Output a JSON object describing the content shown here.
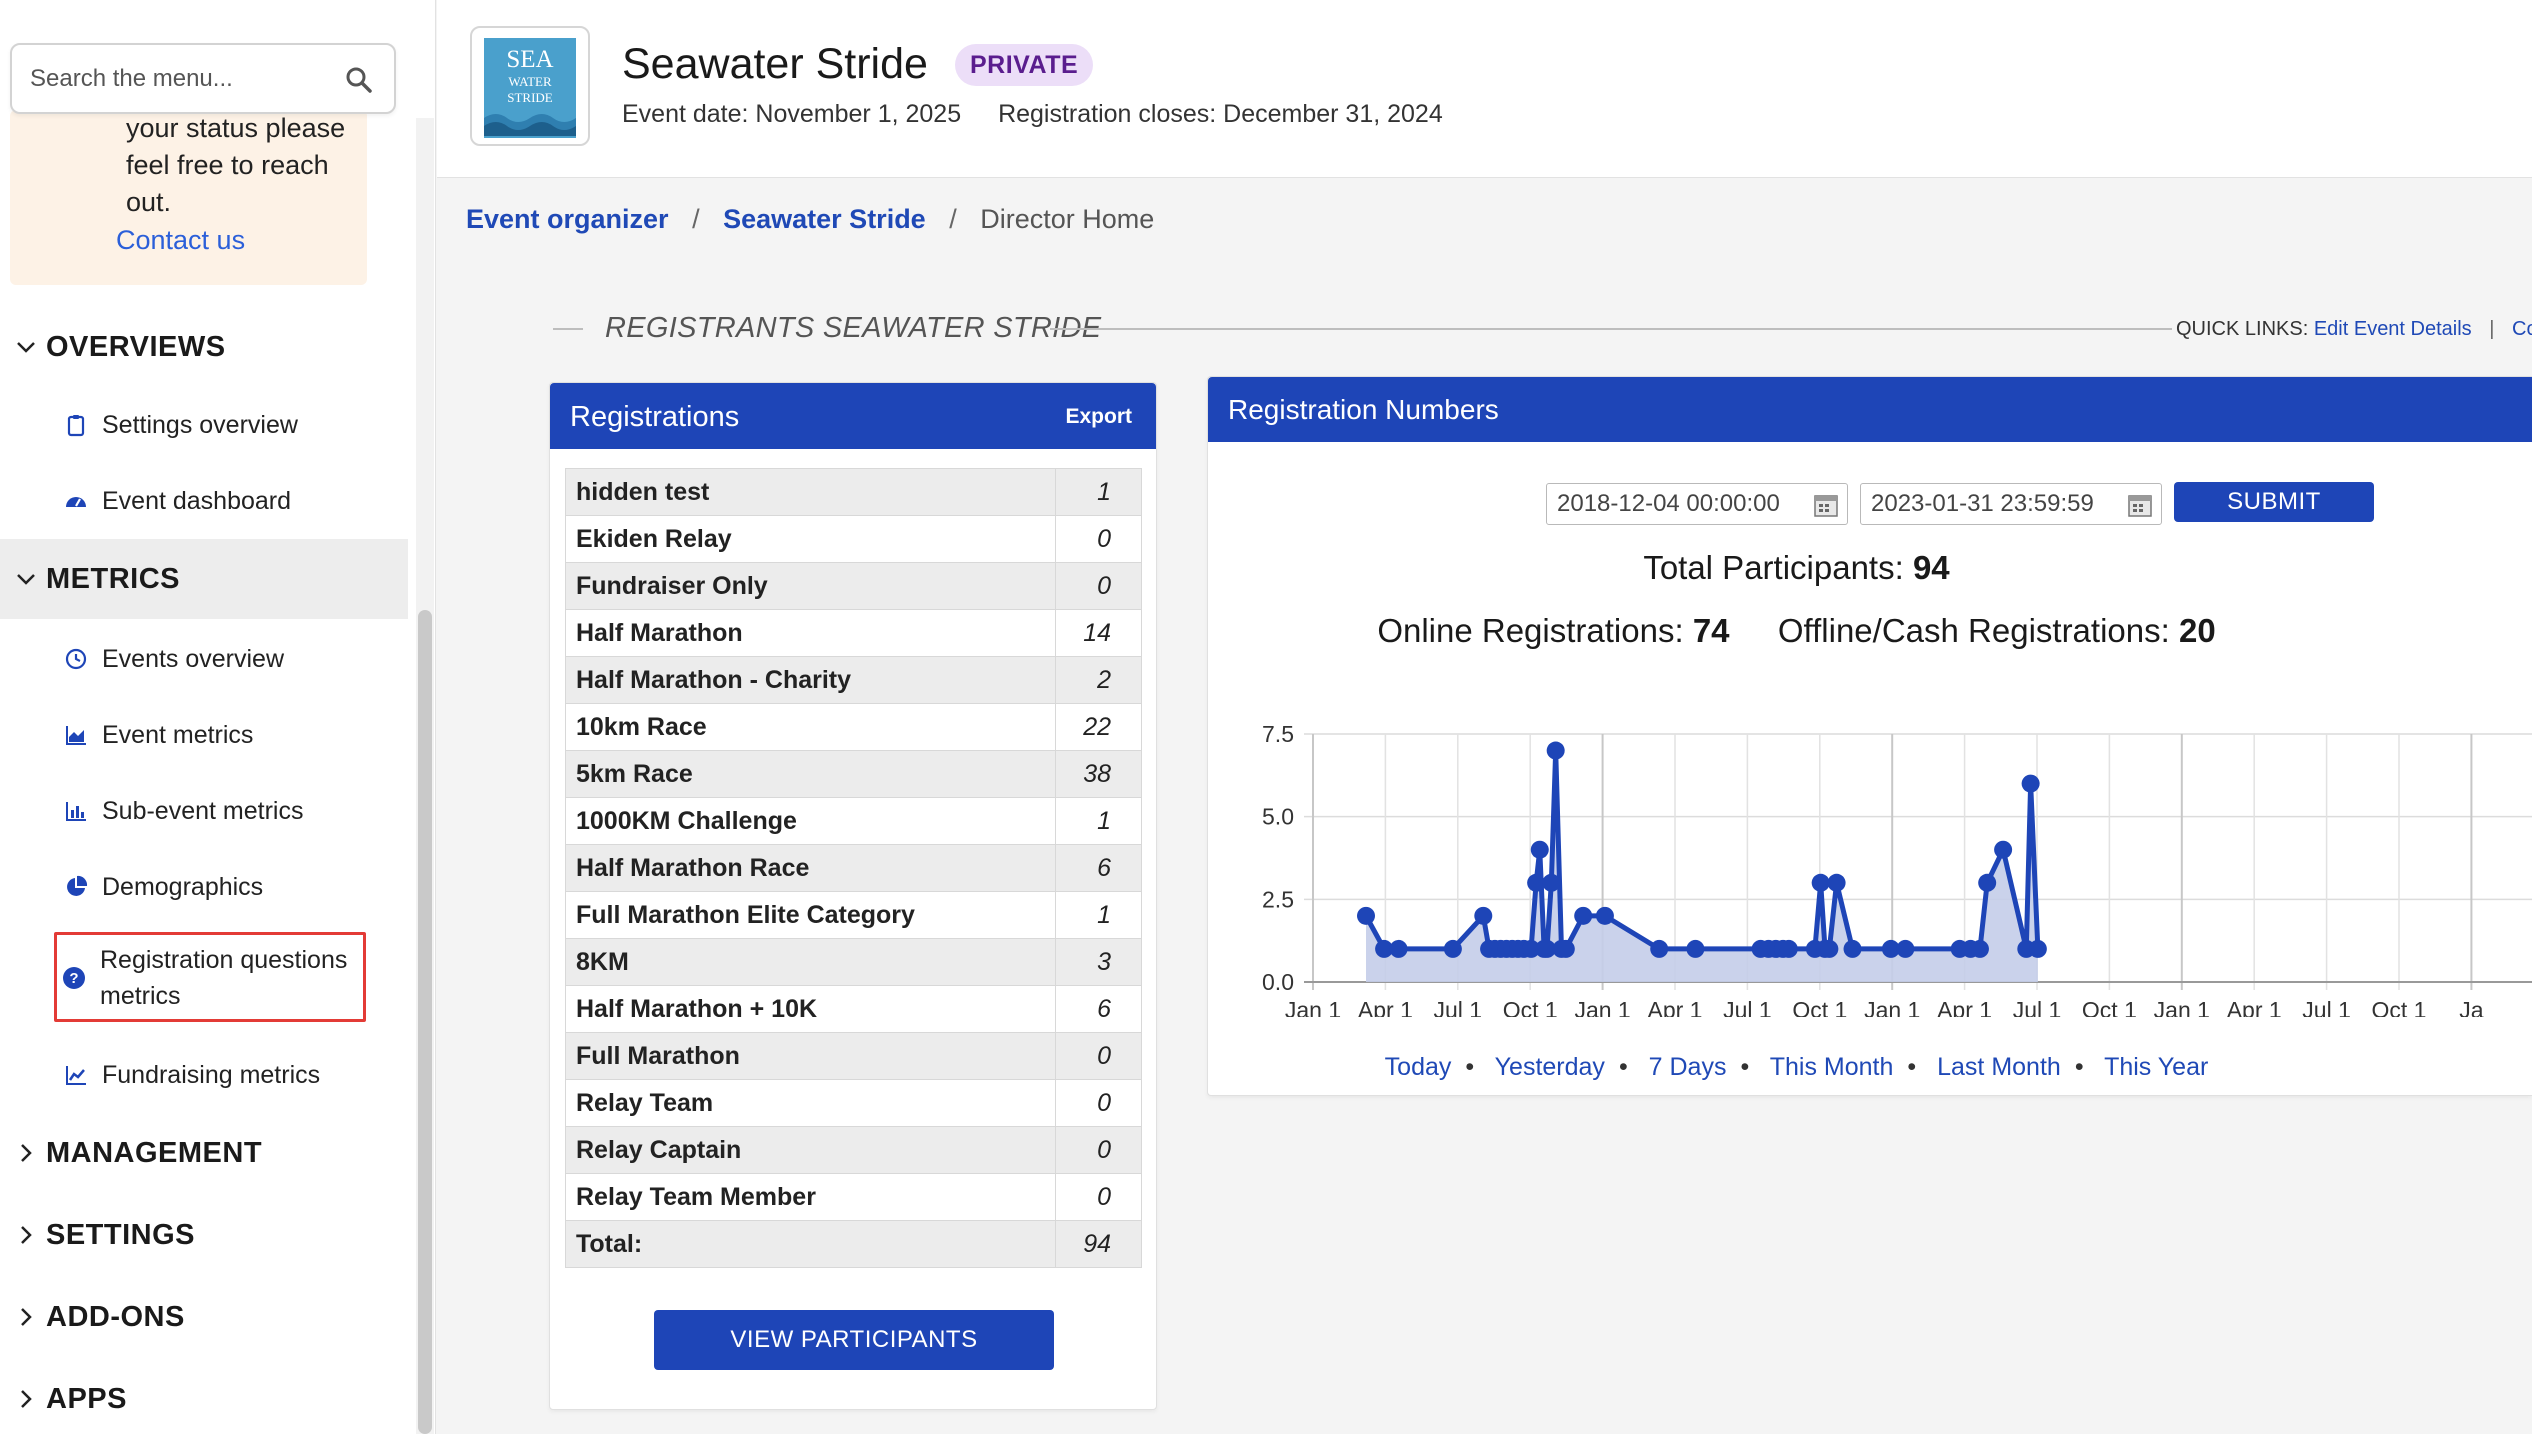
{
  "sidebar": {
    "search_placeholder": "Search the menu...",
    "notice_text": "your status please feel free to reach out.",
    "notice_link": "Contact us",
    "sections": {
      "overviews": "OVERVIEWS",
      "metrics": "METRICS",
      "management": "MANAGEMENT",
      "settings": "SETTINGS",
      "addons": "ADD-ONS",
      "apps": "APPS"
    },
    "overview_items": [
      "Settings overview",
      "Event dashboard"
    ],
    "metric_items": [
      "Events overview",
      "Event metrics",
      "Sub-event metrics",
      "Demographics",
      "Registration questions metrics",
      "Fundraising metrics"
    ]
  },
  "header": {
    "logo_line1": "SEA",
    "logo_line2": "WATER",
    "logo_line3": "STRIDE",
    "title": "Seawater Stride",
    "badge": "PRIVATE",
    "event_date": "Event date: November 1, 2025",
    "registration_closes": "Registration closes: December 31, 2024"
  },
  "breadcrumb": {
    "item1": "Event organizer",
    "item2": "Seawater Stride",
    "current": "Director Home",
    "separator": "/"
  },
  "section": {
    "title": "REGISTRANTS SEAWATER STRIDE",
    "quick_links_label": "QUICK LINKS:",
    "quick_link1": "Edit Event Details",
    "quick_link2": "Copy"
  },
  "registrations": {
    "title": "Registrations",
    "export_label": "Export",
    "rows": [
      {
        "name": "hidden test",
        "count": "1"
      },
      {
        "name": "Ekiden Relay",
        "count": "0"
      },
      {
        "name": "Fundraiser Only",
        "count": "0"
      },
      {
        "name": "Half Marathon",
        "count": "14"
      },
      {
        "name": "Half Marathon - Charity",
        "count": "2"
      },
      {
        "name": "10km Race",
        "count": "22"
      },
      {
        "name": "5km Race",
        "count": "38"
      },
      {
        "name": "1000KM Challenge",
        "count": "1"
      },
      {
        "name": "Half Marathon Race",
        "count": "6"
      },
      {
        "name": "Full Marathon Elite Category",
        "count": "1"
      },
      {
        "name": "8KM",
        "count": "3"
      },
      {
        "name": "Half Marathon + 10K",
        "count": "6"
      },
      {
        "name": "Full Marathon",
        "count": "0"
      },
      {
        "name": "Relay Team",
        "count": "0"
      },
      {
        "name": "Relay Captain",
        "count": "0"
      },
      {
        "name": "Relay Team Member",
        "count": "0"
      },
      {
        "name": "Total:",
        "count": "94"
      }
    ],
    "view_button": "VIEW PARTICIPANTS"
  },
  "numbers": {
    "title": "Registration Numbers",
    "start_date": "2018-12-04 00:00:00",
    "end_date": "2023-01-31 23:59:59",
    "submit_label": "SUBMIT",
    "total_label": "Total Participants:",
    "total_value": "94",
    "online_label": "Online Registrations:",
    "online_value": "74",
    "offline_label": "Offline/Cash Registrations:",
    "offline_value": "20",
    "ranges": [
      "Today",
      "Yesterday",
      "7 Days",
      "This Month",
      "Last Month",
      "This Year"
    ]
  },
  "colors": {
    "accent": "#1e45b7",
    "badge_bg": "#ecdef8",
    "badge_text": "#5a1d8e",
    "highlight": "#e33b36",
    "notice_bg": "#fdf2e6"
  },
  "chart_data": {
    "type": "area",
    "y_ticks": [
      "7.5",
      "5.0",
      "2.5",
      "0.0"
    ],
    "ylim": [
      0,
      7.5
    ],
    "x_tick_labels": [
      "Jan 1",
      "Apr 1",
      "Jul 1",
      "Oct 1",
      "Jan 1",
      "Apr 1",
      "Jul 1",
      "Oct 1",
      "Jan 1",
      "Apr 1",
      "Jul 1",
      "Oct 1",
      "Jan 1",
      "Apr 1",
      "Jul 1",
      "Oct 1",
      "Ja"
    ],
    "grid": true,
    "series": [
      {
        "x": [
          0,
          0.25,
          0.45,
          1.2,
          1.62,
          1.7,
          1.78,
          1.86,
          1.94,
          2.02,
          2.1,
          2.18,
          2.28,
          2.35,
          2.4,
          2.46,
          2.5,
          2.56,
          2.62,
          2.7,
          2.76,
          3.0,
          3.3,
          4.05,
          4.55,
          5.45,
          5.56,
          5.66,
          5.76,
          5.84,
          6.2,
          6.28,
          6.34,
          6.4,
          6.5,
          6.72,
          7.25,
          7.45,
          8.2,
          8.35,
          8.48,
          8.58,
          8.8,
          9.12,
          9.18,
          9.28
        ],
        "values": [
          2,
          1,
          1,
          1,
          2,
          1,
          1,
          1,
          1,
          1,
          1,
          1,
          1,
          3,
          4,
          1,
          1,
          3,
          7,
          1,
          1,
          2,
          2,
          1,
          1,
          1,
          1,
          1,
          1,
          1,
          1,
          3,
          1,
          1,
          3,
          1,
          1,
          1,
          1,
          1,
          1,
          3,
          4,
          1,
          6,
          1
        ]
      }
    ],
    "line_color": "#1e45b7",
    "fill_color": "#c4cde9"
  }
}
